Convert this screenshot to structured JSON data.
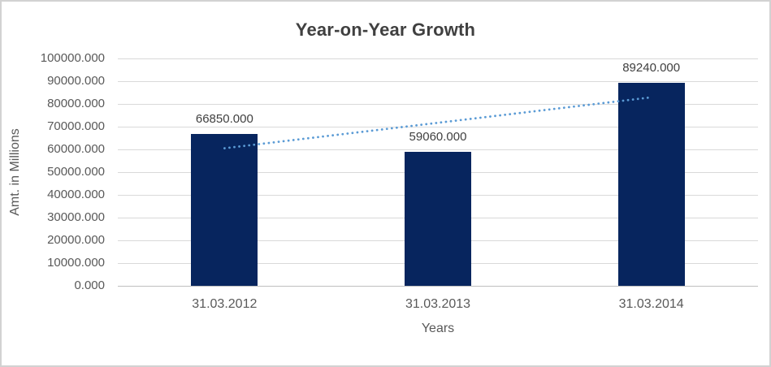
{
  "frame": {
    "background": "#ffffff",
    "border_color": "#d2d2d2"
  },
  "chart_data": {
    "type": "bar",
    "title": "Year-on-Year Growth",
    "xlabel": "Years",
    "ylabel": "Amt. in Millions",
    "categories": [
      "31.03.2012",
      "31.03.2013",
      "31.03.2014"
    ],
    "values": [
      66850,
      59060,
      89240
    ],
    "data_labels": [
      "66850.000",
      "59060.000",
      "89240.000"
    ],
    "yticks": [
      "100000.000",
      "90000.000",
      "80000.000",
      "70000.000",
      "60000.000",
      "50000.000",
      "40000.000",
      "30000.000",
      "20000.000",
      "10000.000",
      "0.000"
    ],
    "ylim": [
      0,
      100000
    ],
    "ytick_step": 10000,
    "grid": true,
    "legend": "none",
    "bar_color": "#07255e",
    "gridline_color": "#d9d9d9",
    "axis_line_color": "#bfbfbf",
    "tick_text_color": "#595959",
    "label_text_color": "#404040",
    "title_color": "#404040",
    "trendline": {
      "style": "dotted",
      "color": "#5b9bd5",
      "start_value": 60500,
      "end_value": 82900
    }
  }
}
